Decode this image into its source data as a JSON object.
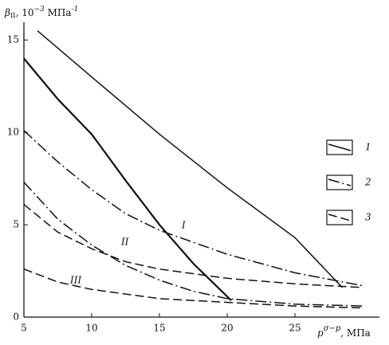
{
  "chart_data": {
    "type": "line",
    "ylabel": {
      "symbol": "β",
      "sub": "п",
      "text": ", 10",
      "sup": "−3",
      "unit": " МПа",
      "unit_sup": "-1"
    },
    "xlabel": {
      "symbol": "p",
      "sup": "σ−p",
      "unit": ", МПа"
    },
    "xlim": [
      5,
      30
    ],
    "ylim": [
      0,
      16
    ],
    "xticks": [
      5,
      10,
      15,
      20,
      25
    ],
    "yticks": [
      0,
      5,
      10,
      15
    ],
    "color": "#111111",
    "legend": [
      {
        "label": "1",
        "style": "solid"
      },
      {
        "label": "2",
        "style": "dashdot"
      },
      {
        "label": "3",
        "style": "dash"
      }
    ],
    "annotations": [
      "I",
      "II",
      "III"
    ],
    "series": [
      {
        "style": "solid",
        "x": [
          6,
          10,
          15,
          20,
          25,
          28.5
        ],
        "values": [
          15.5,
          13,
          9.9,
          7.0,
          4.3,
          1.6
        ]
      },
      {
        "style": "solid",
        "x": [
          5,
          7.5,
          10,
          12.5,
          15,
          17.5,
          20.3
        ],
        "values": [
          14,
          11.8,
          9.9,
          7.4,
          5,
          2.9,
          0.9
        ]
      },
      {
        "style": "dashdot",
        "x": [
          5,
          7.5,
          10,
          12.5,
          15,
          20,
          25,
          30
        ],
        "values": [
          10.1,
          8.4,
          6.9,
          5.6,
          4.7,
          3.4,
          2.4,
          1.7
        ]
      },
      {
        "style": "dashdot",
        "x": [
          5,
          7.5,
          10,
          12.5,
          15,
          17.5,
          20,
          25,
          30
        ],
        "values": [
          7.3,
          5.3,
          3.9,
          2.8,
          2.0,
          1.4,
          1.0,
          0.7,
          0.6
        ]
      },
      {
        "style": "dash",
        "x": [
          5,
          7.5,
          10,
          12.5,
          15,
          20,
          25,
          30
        ],
        "values": [
          6.1,
          4.6,
          3.7,
          3.0,
          2.6,
          2.1,
          1.8,
          1.6
        ]
      },
      {
        "style": "dash",
        "x": [
          5,
          7.5,
          10,
          15,
          20,
          25,
          30
        ],
        "values": [
          2.6,
          1.9,
          1.5,
          1.0,
          0.8,
          0.6,
          0.5
        ]
      }
    ]
  }
}
